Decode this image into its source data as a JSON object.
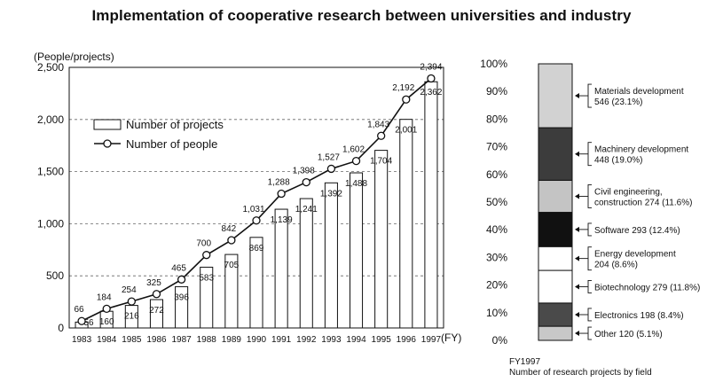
{
  "chart_data": [
    {
      "type": "bar+line",
      "title": "Implementation of cooperative research between universities and industry",
      "ylabel": "(People/projects)",
      "xunit": "(FY)",
      "ylim": [
        0,
        2500
      ],
      "yticks": [
        "0",
        "500",
        "1,000",
        "1,500",
        "2,000",
        "2,500"
      ],
      "categories": [
        "1983",
        "1984",
        "1985",
        "1986",
        "1987",
        "1988",
        "1989",
        "1990",
        "1991",
        "1992",
        "1993",
        "1994",
        "1995",
        "1996",
        "1997"
      ],
      "series": [
        {
          "name": "Number of projects",
          "kind": "bar",
          "values": [
            56,
            160,
            216,
            272,
            396,
            583,
            705,
            869,
            1139,
            1241,
            1392,
            1488,
            1704,
            2001,
            2362
          ],
          "labels": [
            "56",
            "160",
            "216",
            "272",
            "396",
            "583",
            "705",
            "869",
            "1,139",
            "1,241",
            "1,392",
            "1,488",
            "1,704",
            "2,001",
            "2,362"
          ]
        },
        {
          "name": "Number of people",
          "kind": "line",
          "values": [
            66,
            184,
            254,
            325,
            465,
            700,
            842,
            1031,
            1288,
            1398,
            1527,
            1602,
            1843,
            2192,
            2394
          ],
          "labels": [
            "66",
            "184",
            "254",
            "325",
            "465",
            "700",
            "842",
            "1,031",
            "1,288",
            "1,398",
            "1,527",
            "1,602",
            "1,843",
            "2,192",
            "2,394"
          ]
        }
      ],
      "grid": "dashed horizontal"
    },
    {
      "type": "stacked-bar",
      "yticks": [
        "0%",
        "10%",
        "20%",
        "30%",
        "40%",
        "50%",
        "60%",
        "70%",
        "80%",
        "90%",
        "100%"
      ],
      "caption_line1": "FY1997",
      "caption_line2": "Number of research projects by field",
      "segments": [
        {
          "label1": "Other 120 (5.1%)",
          "label2": "",
          "pct": 5.1,
          "color": "#c8c8c8"
        },
        {
          "label1": "Electronics 198 (8.4%)",
          "label2": "",
          "pct": 8.4,
          "color": "#4a4a4a"
        },
        {
          "label1": "Biotechnology 279 (11.8%)",
          "label2": "",
          "pct": 11.8,
          "color": "#ffffff"
        },
        {
          "label1": "Energy development",
          "label2": "204 (8.6%)",
          "pct": 8.6,
          "color": "#ffffff"
        },
        {
          "label1": "Software 293 (12.4%)",
          "label2": "",
          "pct": 12.4,
          "color": "#111111"
        },
        {
          "label1": "Civil engineering,",
          "label2": "construction 274 (11.6%)",
          "pct": 11.6,
          "color": "#c4c4c4"
        },
        {
          "label1": "Machinery development",
          "label2": "448 (19.0%)",
          "pct": 19.0,
          "color": "#3c3c3c"
        },
        {
          "label1": "Materials development",
          "label2": "546 (23.1%)",
          "pct": 23.1,
          "color": "#d2d2d2"
        }
      ]
    }
  ]
}
